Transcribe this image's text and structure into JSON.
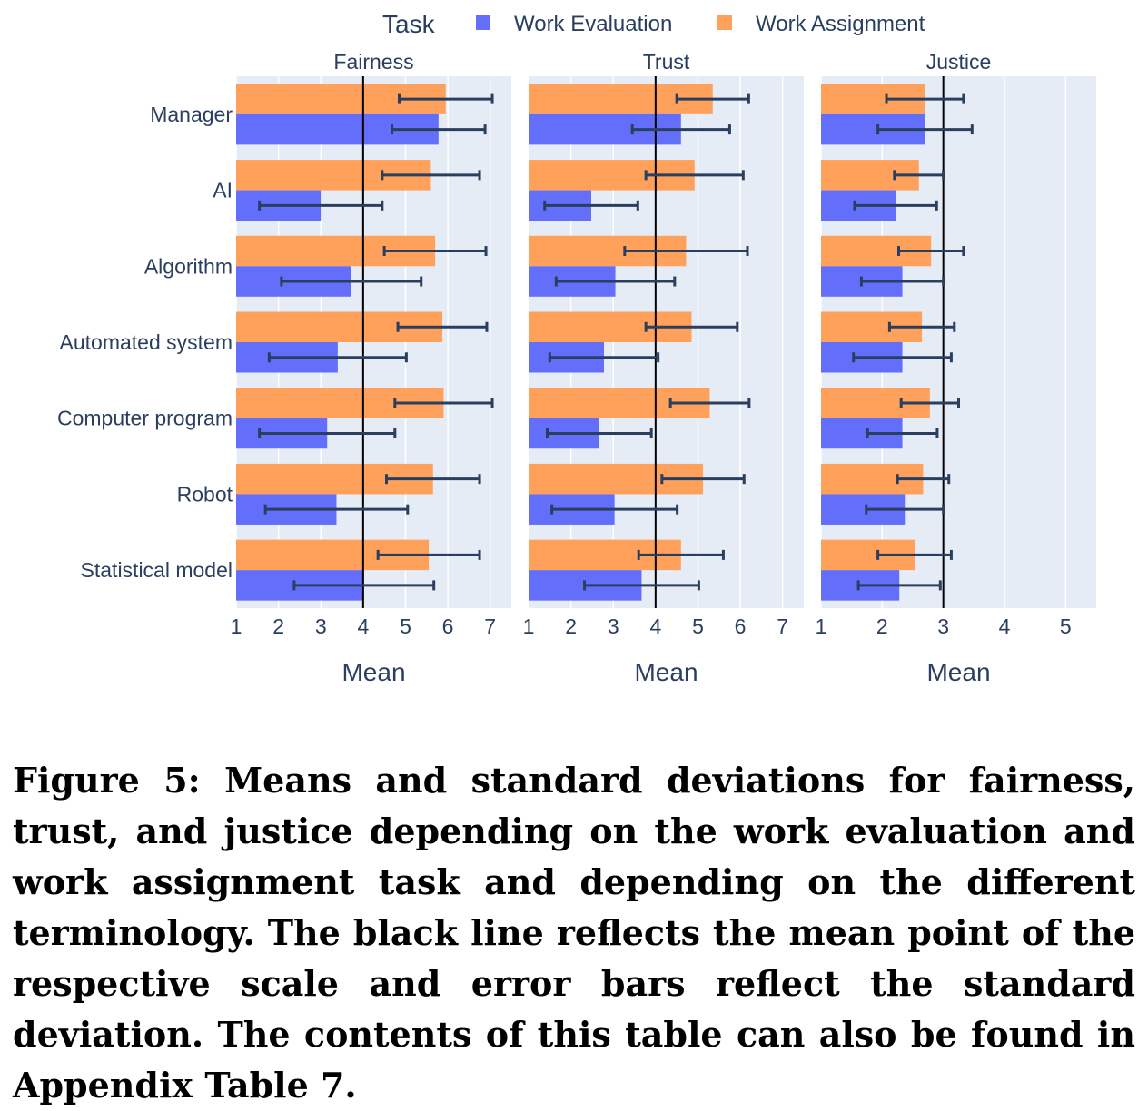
{
  "legend": {
    "title": "Task",
    "items": [
      {
        "label": "Work Evaluation",
        "color": "#636efa"
      },
      {
        "label": "Work Assignment",
        "color": "#ffa15a"
      }
    ]
  },
  "colors": {
    "panel_bg": "#e5ecf6",
    "grid": "#ffffff",
    "axis_text": "#2a3f5f",
    "error_bar": "#2a3f5f",
    "midline": "#000000"
  },
  "chart_data": {
    "type": "bar",
    "orientation": "horizontal",
    "categories": [
      "Manager",
      "AI",
      "Algorithm",
      "Automated system",
      "Computer program",
      "Robot",
      "Statistical model"
    ],
    "panels": [
      {
        "title": "Fairness",
        "xlabel": "Mean",
        "xlim": [
          1,
          7.5
        ],
        "ticks": [
          1,
          2,
          3,
          4,
          5,
          6,
          7
        ],
        "midpoint": 4,
        "series": [
          {
            "name": "Work Assignment",
            "values": [
              5.95,
              5.6,
              5.7,
              5.87,
              5.9,
              5.65,
              5.55
            ],
            "sd": [
              1.1,
              1.15,
              1.2,
              1.05,
              1.15,
              1.1,
              1.2
            ]
          },
          {
            "name": "Work Evaluation",
            "values": [
              5.78,
              3.0,
              3.72,
              3.4,
              3.15,
              3.37,
              4.02
            ],
            "sd": [
              1.1,
              1.45,
              1.65,
              1.62,
              1.6,
              1.68,
              1.65
            ]
          }
        ]
      },
      {
        "title": "Trust",
        "xlabel": "Mean",
        "xlim": [
          1,
          7.5
        ],
        "ticks": [
          1,
          2,
          3,
          4,
          5,
          6,
          7
        ],
        "midpoint": 4,
        "series": [
          {
            "name": "Work Assignment",
            "values": [
              5.35,
              4.92,
              4.72,
              4.85,
              5.28,
              5.12,
              4.6
            ],
            "sd": [
              0.85,
              1.15,
              1.45,
              1.08,
              0.93,
              0.97,
              1.0
            ]
          },
          {
            "name": "Work Evaluation",
            "values": [
              4.6,
              2.48,
              3.05,
              2.78,
              2.67,
              3.03,
              3.67
            ],
            "sd": [
              1.15,
              1.1,
              1.4,
              1.28,
              1.23,
              1.48,
              1.35
            ]
          }
        ]
      },
      {
        "title": "Justice",
        "xlabel": "Mean",
        "xlim": [
          1,
          5.5
        ],
        "ticks": [
          1,
          2,
          3,
          4,
          5
        ],
        "midpoint": 3,
        "series": [
          {
            "name": "Work Assignment",
            "values": [
              2.7,
              2.6,
              2.8,
              2.65,
              2.78,
              2.67,
              2.53
            ],
            "sd": [
              0.63,
              0.4,
              0.53,
              0.53,
              0.47,
              0.42,
              0.6
            ]
          },
          {
            "name": "Work Evaluation",
            "values": [
              2.7,
              2.22,
              2.33,
              2.33,
              2.33,
              2.37,
              2.28
            ],
            "sd": [
              0.77,
              0.67,
              0.67,
              0.8,
              0.57,
              0.63,
              0.67
            ]
          }
        ]
      }
    ]
  },
  "caption": "Figure 5: Means and standard deviations for fairness, trust, and justice depending on the work evaluation and work assignment task and depending on the different terminology. The black line reflects the mean point of the respective scale and error bars reflect the standard deviation. The contents of this table can also be found in Appendix Table 7."
}
